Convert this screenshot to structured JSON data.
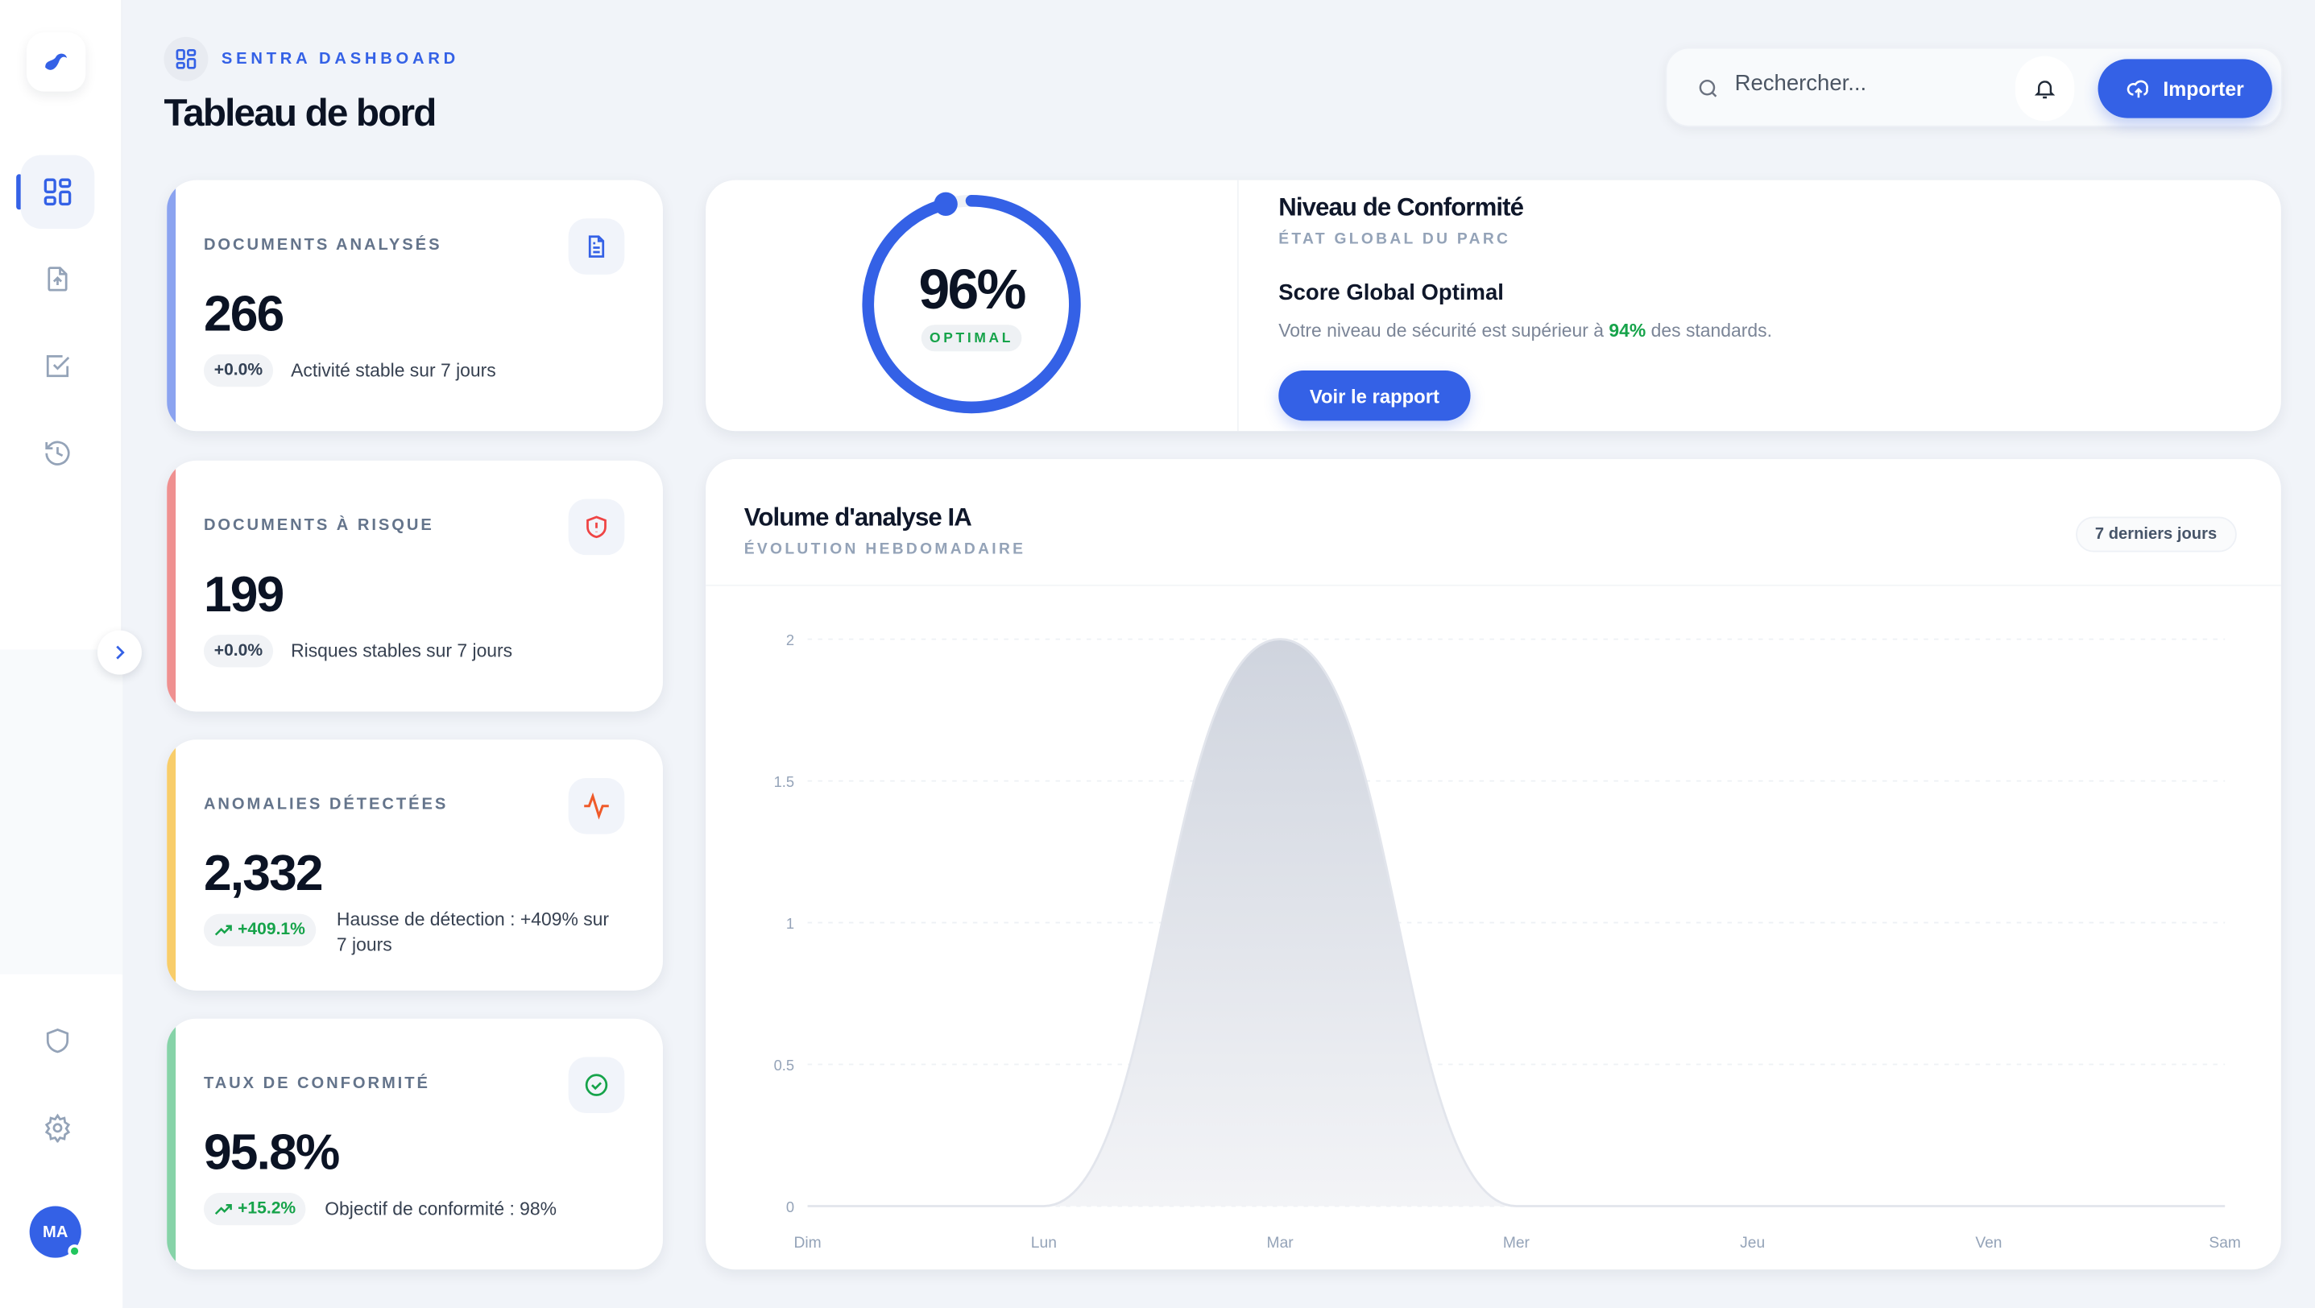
{
  "sidebar": {
    "items": [
      {
        "name": "dashboard",
        "icon": "dashboard-grid-icon",
        "active": true
      },
      {
        "name": "upload",
        "icon": "file-upload-icon"
      },
      {
        "name": "tasks",
        "icon": "checkbox-icon"
      },
      {
        "name": "history",
        "icon": "history-icon"
      },
      {
        "name": "security",
        "icon": "shield-icon"
      },
      {
        "name": "settings",
        "icon": "gear-icon"
      }
    ],
    "avatar_initials": "MA",
    "accent": "#3461e6"
  },
  "header": {
    "breadcrumb": "SENTRA DASHBOARD",
    "title": "Tableau de bord",
    "search_placeholder": "Rechercher...",
    "import_label": "Importer"
  },
  "stats": [
    {
      "label": "DOCUMENTS ANALYSÉS",
      "value": "266",
      "change": "+0.0%",
      "trend": "none",
      "desc": "Activité stable sur 7 jours",
      "color": "#8ba3f0",
      "icon": "document-icon"
    },
    {
      "label": "DOCUMENTS À RISQUE",
      "value": "199",
      "change": "+0.0%",
      "trend": "none",
      "desc": "Risques stables sur 7 jours",
      "color": "#ef9090",
      "icon": "shield-alert-icon"
    },
    {
      "label": "ANOMALIES DÉTECTÉES",
      "value": "2,332",
      "change": "+409.1%",
      "trend": "up",
      "desc": "Hausse de détection : +409% sur 7 jours",
      "color": "#f8cd6a",
      "icon": "activity-icon"
    },
    {
      "label": "TAUX DE CONFORMITÉ",
      "value": "95.8%",
      "change": "+15.2%",
      "trend": "up",
      "desc": "Objectif de conformité : 98%",
      "color": "#86d3a8",
      "icon": "check-circle-icon"
    }
  ],
  "compliance": {
    "score": "96%",
    "score_value": 96,
    "badge": "OPTIMAL",
    "title": "Niveau de Conformité",
    "subtitle": "ÉTAT GLOBAL DU PARC",
    "heading": "Score Global Optimal",
    "text_before": "Votre niveau de sécurité est supérieur à ",
    "text_highlight": "94%",
    "text_after": " des standards.",
    "button": "Voir le rapport"
  },
  "chart_data": {
    "type": "area",
    "title": "Volume d'analyse IA",
    "subtitle": "ÉVOLUTION HEBDOMADAIRE",
    "range_label": "7 derniers jours",
    "categories": [
      "Dim",
      "Lun",
      "Mar",
      "Mer",
      "Jeu",
      "Ven",
      "Sam"
    ],
    "values": [
      0,
      0,
      2,
      0,
      0,
      0,
      0
    ],
    "yticks": [
      "0",
      "0.5",
      "1",
      "1.5",
      "2"
    ],
    "ylim": [
      0,
      2
    ],
    "grid": true
  }
}
